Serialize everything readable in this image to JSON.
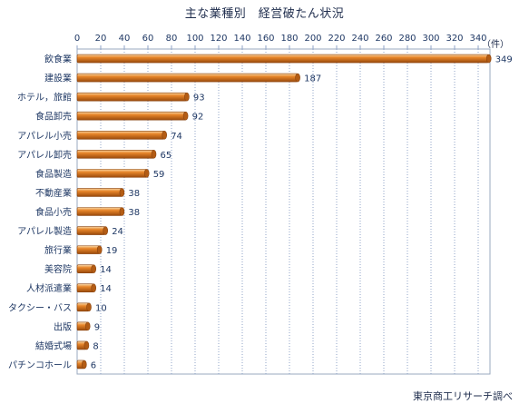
{
  "chart_data": {
    "type": "bar",
    "orientation": "horizontal",
    "title": "主な業種別　経営破たん状況",
    "unit_label": "（件）",
    "source": "東京商工リサーチ調べ",
    "categories": [
      "飲食業",
      "建設業",
      "ホテル，旅館",
      "食品卸売",
      "アパレル小売",
      "アパレル卸売",
      "食品製造",
      "不動産業",
      "食品小売",
      "アパレル製造",
      "旅行業",
      "美容院",
      "人材派遣業",
      "タクシー・バス",
      "出版",
      "結婚式場",
      "パチンコホール"
    ],
    "values": [
      349,
      187,
      93,
      92,
      74,
      65,
      59,
      38,
      38,
      24,
      19,
      14,
      14,
      10,
      9,
      8,
      6
    ],
    "xlim": [
      0,
      350
    ],
    "xticks": [
      0,
      20,
      40,
      60,
      80,
      100,
      120,
      140,
      160,
      180,
      200,
      220,
      240,
      260,
      280,
      300,
      320,
      340
    ],
    "xaxis_position": "top",
    "grid": "vertical dotted",
    "bar_color": "#e8862a",
    "axis_text_color": "#1f3864"
  }
}
